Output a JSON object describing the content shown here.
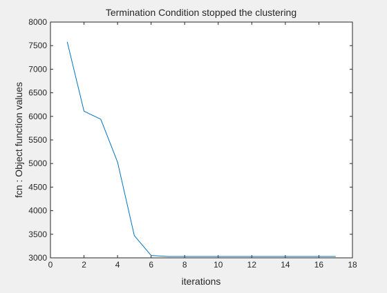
{
  "chart_data": {
    "type": "line",
    "title": "Termination Condition stopped the clustering",
    "xlabel": "iterations",
    "ylabel": "fcn : Object function values",
    "xlim": [
      0,
      18
    ],
    "ylim": [
      3000,
      8000
    ],
    "xticks": [
      0,
      2,
      4,
      6,
      8,
      10,
      12,
      14,
      16,
      18
    ],
    "yticks": [
      3000,
      3500,
      4000,
      4500,
      5000,
      5500,
      6000,
      6500,
      7000,
      7500,
      8000
    ],
    "grid": false,
    "series": [
      {
        "color": "#0072bd",
        "x": [
          1,
          2,
          3,
          4,
          5,
          6,
          7,
          8,
          9,
          10,
          11,
          12,
          13,
          14,
          15,
          16,
          17
        ],
        "y": [
          7580,
          6110,
          5940,
          5030,
          3470,
          3050,
          3030,
          3030,
          3030,
          3030,
          3030,
          3030,
          3030,
          3030,
          3030,
          3030,
          3030
        ]
      }
    ]
  }
}
